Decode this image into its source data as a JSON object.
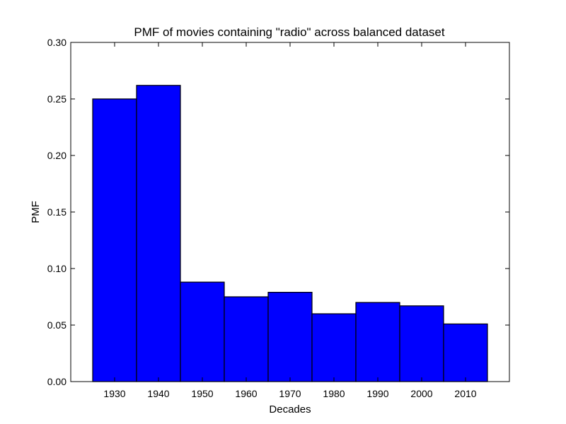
{
  "chart_data": {
    "type": "bar",
    "title": "PMF of movies containing \"radio\" across balanced dataset",
    "xlabel": "Decades",
    "ylabel": "PMF",
    "categories": [
      "1930",
      "1940",
      "1950",
      "1960",
      "1970",
      "1980",
      "1990",
      "2000",
      "2010"
    ],
    "values": [
      0.25,
      0.262,
      0.088,
      0.075,
      0.079,
      0.06,
      0.07,
      0.067,
      0.051
    ],
    "xlim": [
      1920,
      2020
    ],
    "ylim": [
      0,
      0.3
    ],
    "yticks": [
      "0.00",
      "0.05",
      "0.10",
      "0.15",
      "0.20",
      "0.25",
      "0.30"
    ],
    "grid": false,
    "bar_color": "#0000ff",
    "edge_color": "#000000"
  }
}
